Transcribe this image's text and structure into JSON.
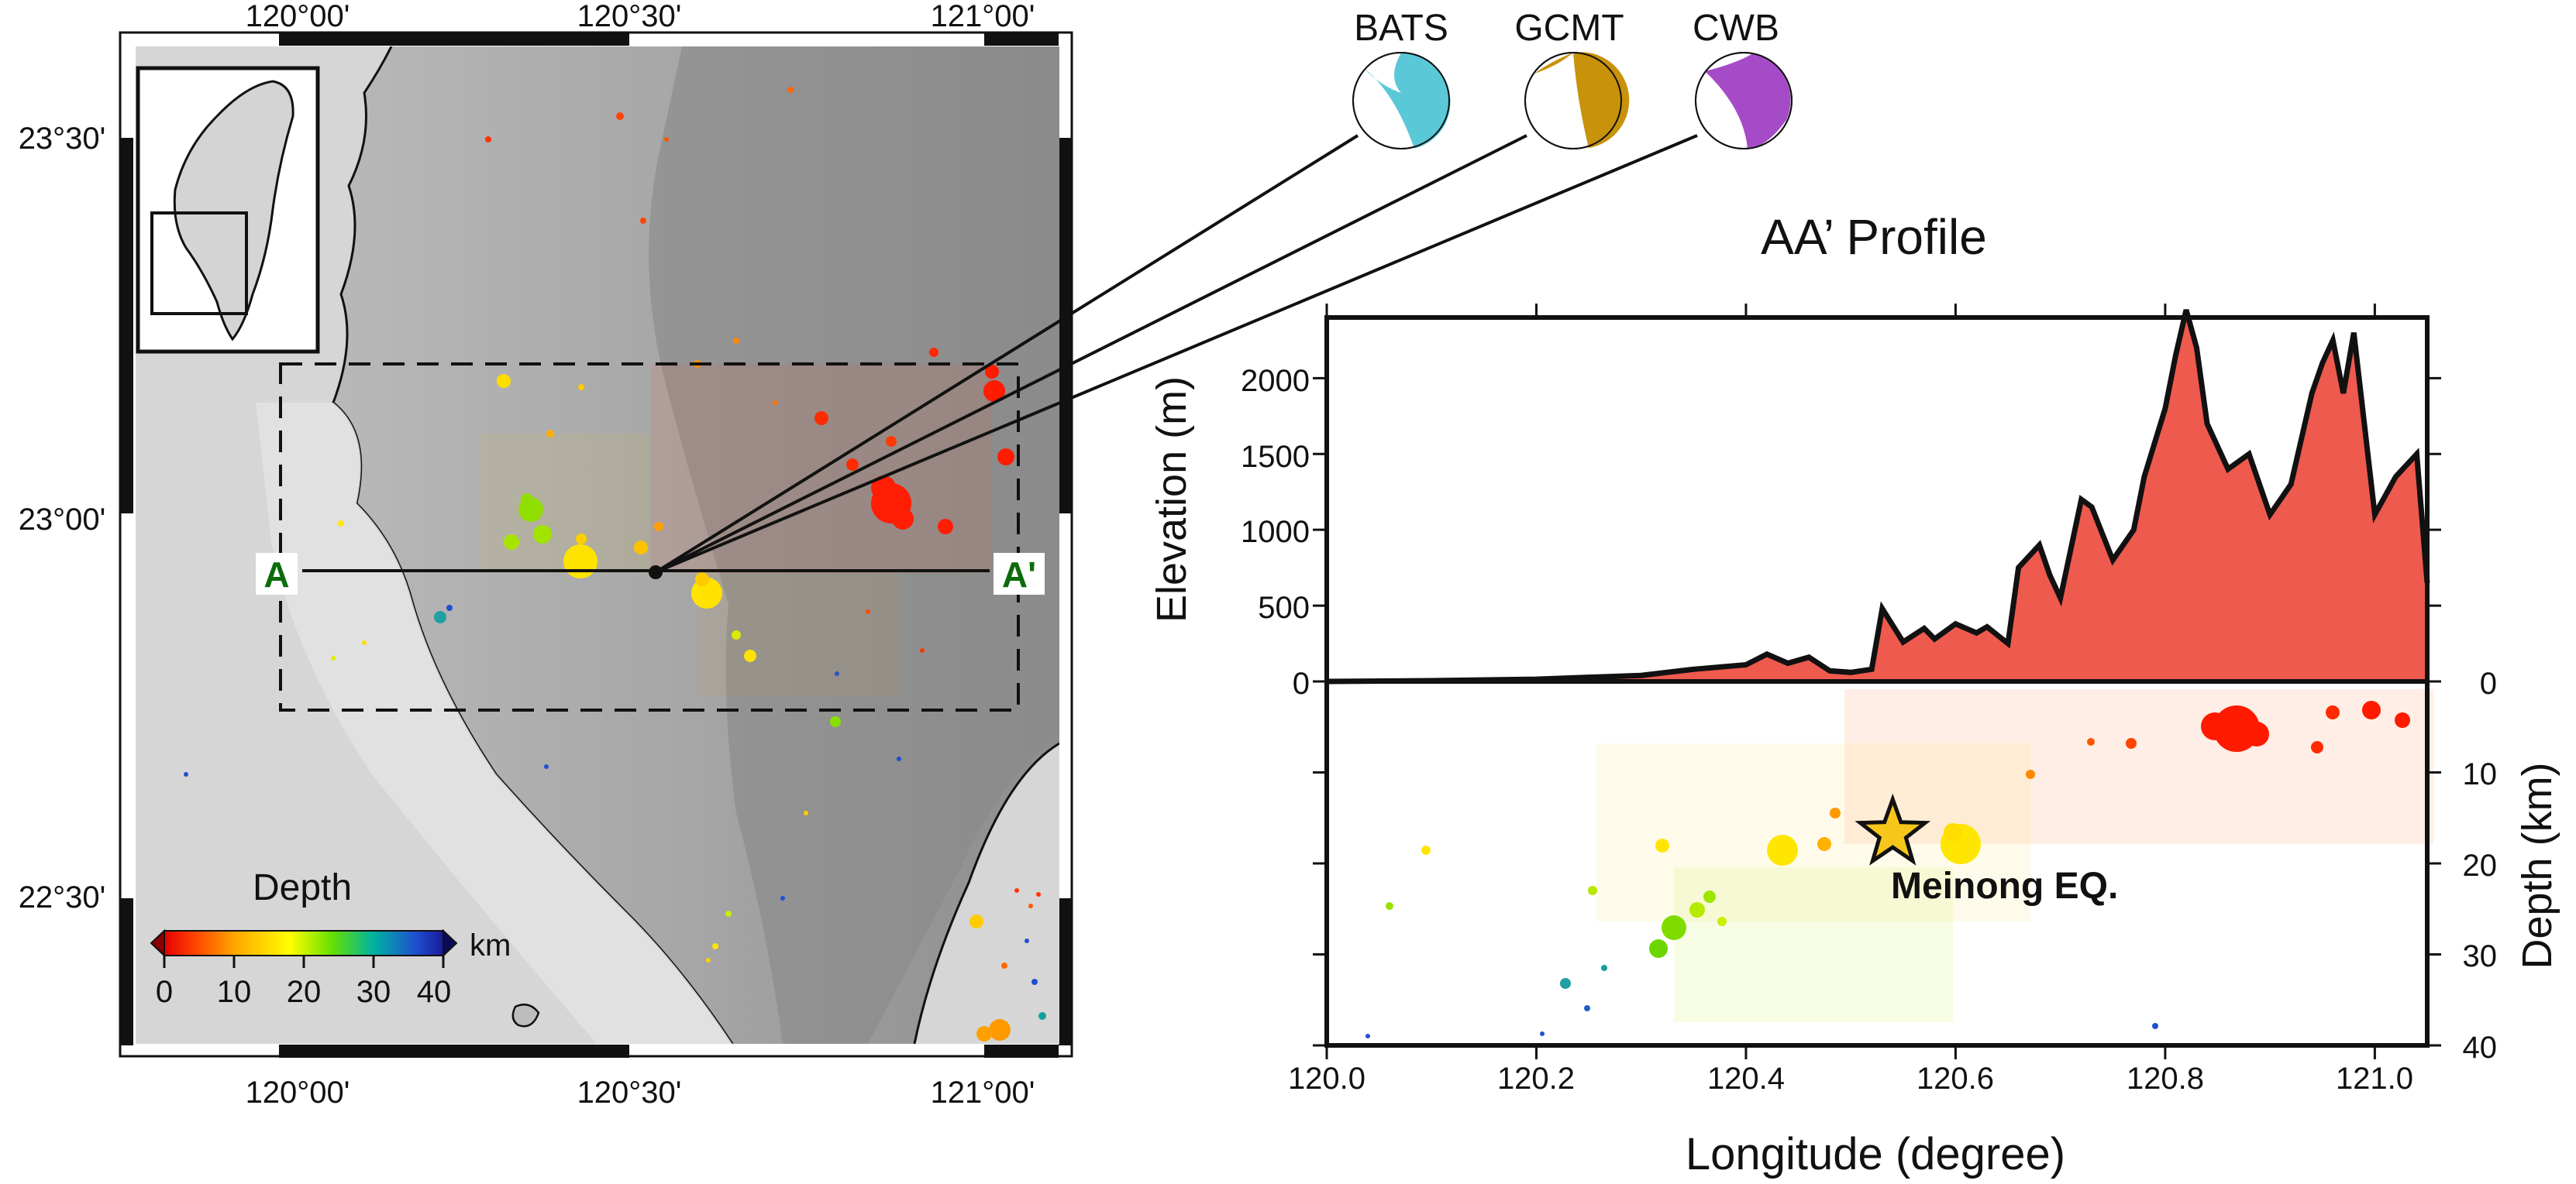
{
  "map": {
    "top_ticks": [
      "120°00'",
      "120°30'",
      "121°00'"
    ],
    "bottom_ticks": [
      "120°00'",
      "120°30'",
      "121°00'"
    ],
    "left_ticks": [
      "23°30'",
      "23°00'",
      "22°30'"
    ],
    "profile_start_label": "A",
    "profile_end_label": "A'",
    "legend": {
      "title": "Depth",
      "unit": "km",
      "ticks": [
        "0",
        "10",
        "20",
        "30",
        "40"
      ]
    }
  },
  "focal_mechanisms": [
    {
      "label": "BATS",
      "color": "#5bc8d8"
    },
    {
      "label": "GCMT",
      "color": "#c8920a"
    },
    {
      "label": "CWB",
      "color": "#a64bc8"
    }
  ],
  "profile": {
    "title": "AA’ Profile",
    "xlabel": "Longitude (degree)",
    "ylabel_top": "Elevation (m)",
    "ylabel_bottom": "Depth (km)",
    "x_ticks": [
      "120.0",
      "120.2",
      "120.4",
      "120.6",
      "120.8",
      "121.0"
    ],
    "elev_ticks": [
      "0",
      "500",
      "1000",
      "1500",
      "2000"
    ],
    "depth_ticks": [
      "0",
      "10",
      "20",
      "30",
      "40"
    ],
    "mainshock_label": "Meinong EQ.",
    "mainshock": {
      "lon": 120.54,
      "depth_km": 16.7
    },
    "elevation_fill_color": "#ee5a4e"
  },
  "chart_data": {
    "type": "area",
    "x": [
      120.0,
      120.1,
      120.2,
      120.3,
      120.35,
      120.4,
      120.42,
      120.44,
      120.46,
      120.48,
      120.5,
      120.52,
      120.53,
      120.55,
      120.57,
      120.58,
      120.6,
      120.62,
      120.63,
      120.65,
      120.66,
      120.68,
      120.69,
      120.7,
      120.72,
      120.73,
      120.75,
      120.77,
      120.78,
      120.8,
      120.81,
      120.82,
      120.83,
      120.84,
      120.86,
      120.88,
      120.9,
      120.92,
      120.94,
      120.95,
      120.96,
      120.97,
      120.98,
      121.0,
      121.02,
      121.04,
      121.05
    ],
    "y": [
      0,
      5,
      15,
      40,
      80,
      110,
      180,
      120,
      160,
      70,
      60,
      80,
      480,
      260,
      350,
      280,
      380,
      320,
      360,
      250,
      750,
      900,
      700,
      550,
      1200,
      1150,
      800,
      1000,
      1350,
      1800,
      2150,
      2450,
      2200,
      1700,
      1400,
      1500,
      1100,
      1300,
      1900,
      2100,
      2250,
      1900,
      2300,
      1100,
      1350,
      1500,
      650
    ],
    "xlim": [
      120.0,
      121.05
    ],
    "ylim": [
      0,
      2400
    ],
    "xlabel": "Longitude (degree)",
    "ylabel": "Elevation (m)",
    "depth_axis": {
      "ylim": [
        0,
        40
      ],
      "label": "Depth (km)"
    }
  }
}
